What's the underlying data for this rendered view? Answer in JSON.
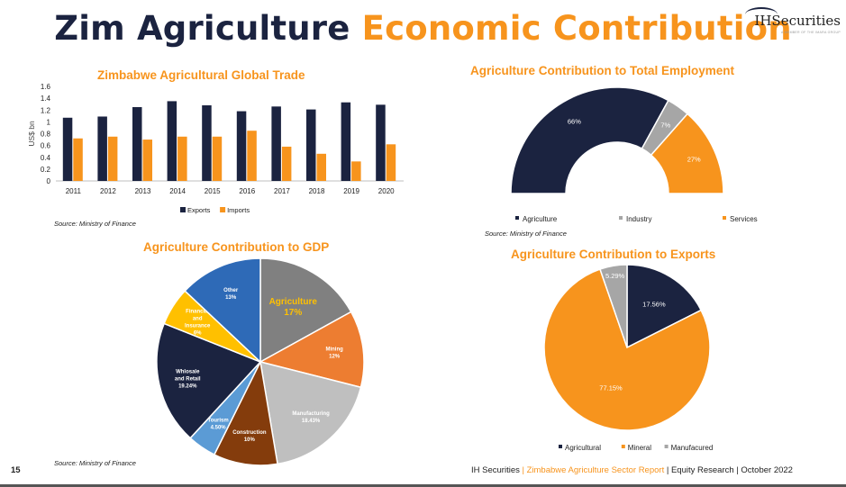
{
  "page": {
    "title_part1": "Zim Agriculture",
    "title_part2": "Economic Contribution",
    "logo_text": "IHSecurities",
    "logo_sub": "A MEMBER OF THE IMARA GROUP",
    "page_number": "15",
    "footer": {
      "part1": "IH Securities",
      "sep1": " | ",
      "part2": "Zimbabwe Agriculture Sector Report",
      "sep2": " | ",
      "part3": "Equity Research | October 2022"
    },
    "source_trade": "Source: Ministry of Finance",
    "source_employment": "Source: Ministry of Finance",
    "source_gdp": "Source: Ministry of Finance"
  },
  "colors": {
    "navy": "#1b2340",
    "orange": "#f7941d",
    "gray": "#a6a6a6"
  },
  "chart_data": [
    {
      "id": "trade",
      "type": "bar",
      "title": "Zimbabwe Agricultural Global Trade",
      "ylabel": "US$ bn",
      "xlabel": "",
      "ylim": [
        0,
        1.6
      ],
      "yticks": [
        "0",
        "0.2",
        "0.4",
        "0.6",
        "0.8",
        "1",
        "1.2",
        "1.4",
        "1.6"
      ],
      "categories": [
        "2011",
        "2012",
        "2013",
        "2014",
        "2015",
        "2016",
        "2017",
        "2018",
        "2019",
        "2020"
      ],
      "series": [
        {
          "name": "Exports",
          "color": "#1b2340",
          "values": [
            1.07,
            1.09,
            1.25,
            1.35,
            1.28,
            1.18,
            1.26,
            1.21,
            1.33,
            1.29
          ]
        },
        {
          "name": "Imports",
          "color": "#f7941d",
          "values": [
            0.72,
            0.75,
            0.7,
            0.75,
            0.75,
            0.85,
            0.58,
            0.46,
            0.33,
            0.62
          ]
        }
      ],
      "legend": "bottom"
    },
    {
      "id": "employment",
      "type": "pie",
      "subtype": "half-doughnut",
      "title": "Agriculture Contribution to Total Employment",
      "slices": [
        {
          "name": "Agriculture",
          "value": 66,
          "label": "66%",
          "color": "#1b2340"
        },
        {
          "name": "Industry",
          "value": 7,
          "label": "7%",
          "color": "#a6a6a6"
        },
        {
          "name": "Services",
          "value": 27,
          "label": "27%",
          "color": "#f7941d"
        }
      ],
      "legend": "bottom"
    },
    {
      "id": "gdp",
      "type": "pie",
      "title": "Agriculture Contribution to GDP",
      "slices": [
        {
          "name": "Agriculture",
          "value": 17,
          "label": "17%",
          "color": "#808080"
        },
        {
          "name": "Mining",
          "value": 12,
          "label": "12%",
          "color": "#ed7d31"
        },
        {
          "name": "Manufacturing",
          "value": 18.43,
          "label": "18.43%",
          "color": "#bfbfbf"
        },
        {
          "name": "Construction",
          "value": 10,
          "label": "10%",
          "color": "#843c0c"
        },
        {
          "name": "Tourism",
          "value": 4.5,
          "label": "4.50%",
          "color": "#5b9bd5"
        },
        {
          "name": "Whlosale and Retail",
          "value": 19.24,
          "label": "19.24%",
          "color": "#1b2340"
        },
        {
          "name": "Financial and Insurance",
          "value": 6,
          "label": "6%",
          "color": "#ffc000"
        },
        {
          "name": "Other",
          "value": 13,
          "label": "13%",
          "color": "#2e6ab7"
        }
      ]
    },
    {
      "id": "exports",
      "type": "pie",
      "title": "Agriculture Contribution to Exports",
      "slices": [
        {
          "name": "Agricultural",
          "value": 17.56,
          "label": "17.56%",
          "color": "#1b2340"
        },
        {
          "name": "Mineral",
          "value": 77.15,
          "label": "77.15%",
          "color": "#f7941d"
        },
        {
          "name": "Manufacured",
          "value": 5.29,
          "label": "5.29%",
          "color": "#a6a6a6"
        }
      ],
      "legend": "bottom"
    }
  ]
}
